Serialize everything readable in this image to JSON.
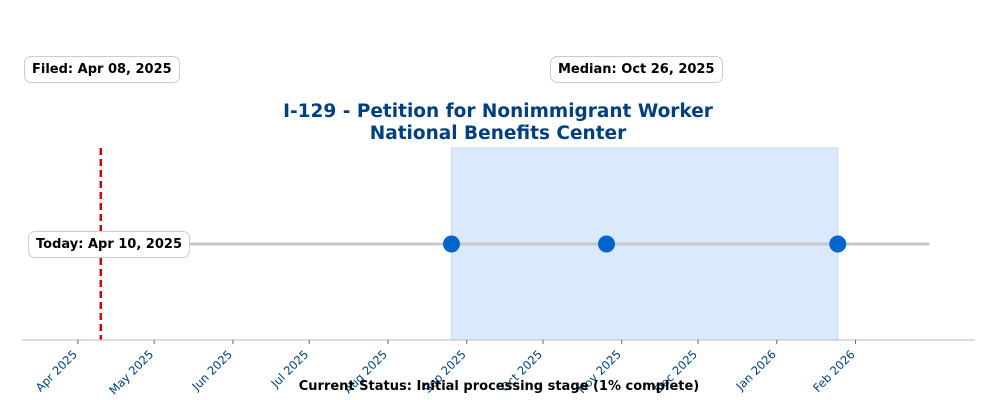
{
  "chart_data": {
    "type": "line",
    "title": "I-129 - Petition for Nonimmigrant Worker",
    "subtitle": "National Benefits Center",
    "x_tick_labels": [
      "Apr 2025",
      "May 2025",
      "Jun 2025",
      "Jul 2025",
      "Aug 2025",
      "Sep 2025",
      "Oct 2025",
      "Nov 2025",
      "Dec 2025",
      "Jan 2026",
      "Feb 2026"
    ],
    "xlim": [
      "2025-03-10",
      "2026-03-20"
    ],
    "timeline": {
      "start": "2025-04-08",
      "end": "2026-03-02"
    },
    "points": [
      "2025-04-08",
      "2025-08-26",
      "2025-10-26",
      "2026-01-25"
    ],
    "processing_window": {
      "start": "2025-08-26",
      "end": "2026-01-25"
    },
    "today": "2025-04-10",
    "annotations": {
      "filed": "Filed: Apr 08, 2025",
      "median": "Median: Oct 26, 2025",
      "today": "Today: Apr 10, 2025"
    },
    "status": "Current Status: Initial processing stage (1% complete)",
    "colors": {
      "title": "#003f7f",
      "point": "#0066cc",
      "filed_point": "#c5d8ee",
      "line": "#c8c8c8",
      "window_fill": "#dbe9fd",
      "today_line": "#cc0000",
      "tick_label": "#003f7f"
    },
    "grid": false,
    "legend": "none"
  }
}
